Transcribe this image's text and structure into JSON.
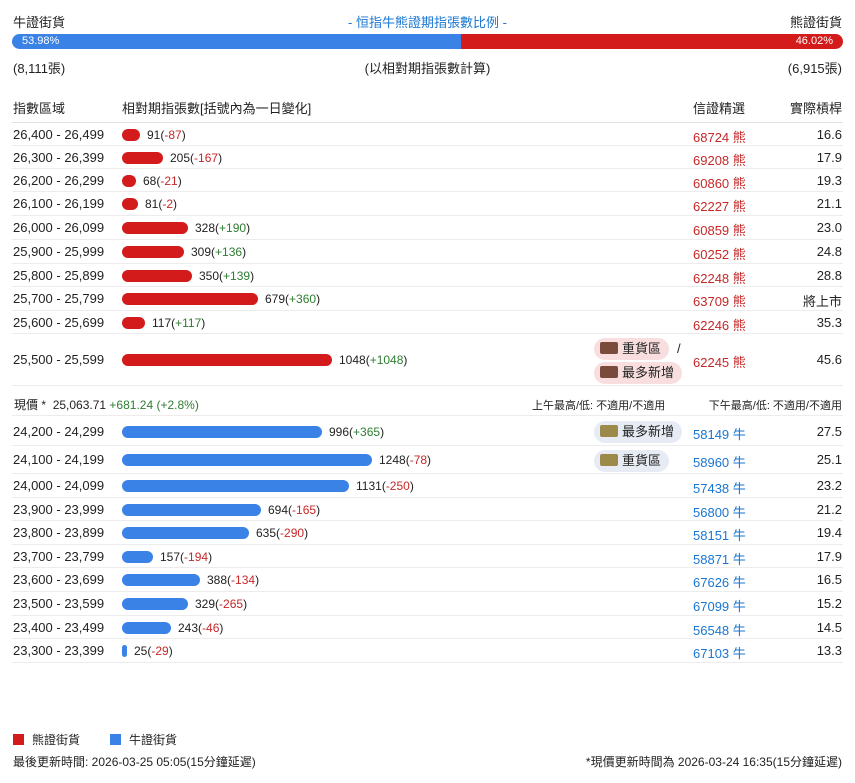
{
  "header": {
    "bull_label": "牛證街貨",
    "title": "- 恒指牛熊證期指張數比例 -",
    "bear_label": "熊證街貨",
    "bull_pct_label": "53.98%",
    "bear_pct_label": "46.02%",
    "bull_fraction": 0.5398,
    "bull_count": "(8,111張)",
    "note": "(以相對期指張數計算)",
    "bear_count": "(6,915張)"
  },
  "columns": {
    "range": "指數區域",
    "contracts": "相對期指張數[括號內為一日變化]",
    "code": "信證精選",
    "ratio": "實際槓桿"
  },
  "bear_rows": [
    {
      "range": "26,400 - 26,499",
      "qty": "91",
      "chg": "-87",
      "code": "68724",
      "type": "熊",
      "ratio": "16.6"
    },
    {
      "range": "26,300 - 26,399",
      "qty": "205",
      "chg": "-167",
      "code": "69208",
      "type": "熊",
      "ratio": "17.9"
    },
    {
      "range": "26,200 - 26,299",
      "qty": "68",
      "chg": "-21",
      "code": "60860",
      "type": "熊",
      "ratio": "19.3"
    },
    {
      "range": "26,100 - 26,199",
      "qty": "81",
      "chg": "-2",
      "code": "62227",
      "type": "熊",
      "ratio": "21.1"
    },
    {
      "range": "26,000 - 26,099",
      "qty": "328",
      "chg": "+190",
      "code": "60859",
      "type": "熊",
      "ratio": "23.0"
    },
    {
      "range": "25,900 - 25,999",
      "qty": "309",
      "chg": "+136",
      "code": "60252",
      "type": "熊",
      "ratio": "24.8"
    },
    {
      "range": "25,800 - 25,899",
      "qty": "350",
      "chg": "+139",
      "code": "62248",
      "type": "熊",
      "ratio": "28.8"
    },
    {
      "range": "25,700 - 25,799",
      "qty": "679",
      "chg": "+360",
      "code": "63709",
      "type": "熊",
      "ratio": "將上市"
    },
    {
      "range": "25,600 - 25,699",
      "qty": "117",
      "chg": "+117",
      "code": "62246",
      "type": "熊",
      "ratio": "35.3"
    },
    {
      "range": "25,500 - 25,599",
      "qty": "1048",
      "chg": "+1048",
      "code": "62245",
      "type": "熊",
      "ratio": "45.6"
    }
  ],
  "bear_tags": {
    "heavy": "重貨區",
    "slash": "/",
    "most_new": "最多新增"
  },
  "price": {
    "label": "現價 *",
    "value": "25,063.71",
    "change": "+681.24 (+2.8%)",
    "am": "上午最高/低: 不適用/不適用",
    "pm": "下午最高/低: 不適用/不適用"
  },
  "bull_rows": [
    {
      "range": "24,200 - 24,299",
      "qty": "996",
      "chg": "+365",
      "code": "58149",
      "type": "牛",
      "ratio": "27.5"
    },
    {
      "range": "24,100 - 24,199",
      "qty": "1248",
      "chg": "-78",
      "code": "58960",
      "type": "牛",
      "ratio": "25.1"
    },
    {
      "range": "24,000 - 24,099",
      "qty": "1131",
      "chg": "-250",
      "code": "57438",
      "type": "牛",
      "ratio": "23.2"
    },
    {
      "range": "23,900 - 23,999",
      "qty": "694",
      "chg": "-165",
      "code": "56800",
      "type": "牛",
      "ratio": "21.2"
    },
    {
      "range": "23,800 - 23,899",
      "qty": "635",
      "chg": "-290",
      "code": "58151",
      "type": "牛",
      "ratio": "19.4"
    },
    {
      "range": "23,700 - 23,799",
      "qty": "157",
      "chg": "-194",
      "code": "58871",
      "type": "牛",
      "ratio": "17.9"
    },
    {
      "range": "23,600 - 23,699",
      "qty": "388",
      "chg": "-134",
      "code": "67626",
      "type": "牛",
      "ratio": "16.5"
    },
    {
      "range": "23,500 - 23,599",
      "qty": "329",
      "chg": "-265",
      "code": "67099",
      "type": "牛",
      "ratio": "15.2"
    },
    {
      "range": "23,400 - 23,499",
      "qty": "243",
      "chg": "-46",
      "code": "56548",
      "type": "牛",
      "ratio": "14.5"
    },
    {
      "range": "23,300 - 23,399",
      "qty": "25",
      "chg": "-29",
      "code": "67103",
      "type": "牛",
      "ratio": "13.3"
    }
  ],
  "bull_tags": {
    "most_new": "最多新增",
    "heavy": "重貨區"
  },
  "bar_scale_max": 1248,
  "legend": {
    "bear": "熊證街貨",
    "bull": "牛證街貨"
  },
  "footer": {
    "updated": "最後更新時間: 2026-03-25 05:05(15分鐘延遲)",
    "price_updated": "*現價更新時間為 2026-03-24 16:35(15分鐘延遲)"
  },
  "colors": {
    "bear": "#d31b1b",
    "bull": "#3b82e6",
    "up": "#2e7d32",
    "down": "#c62828"
  }
}
